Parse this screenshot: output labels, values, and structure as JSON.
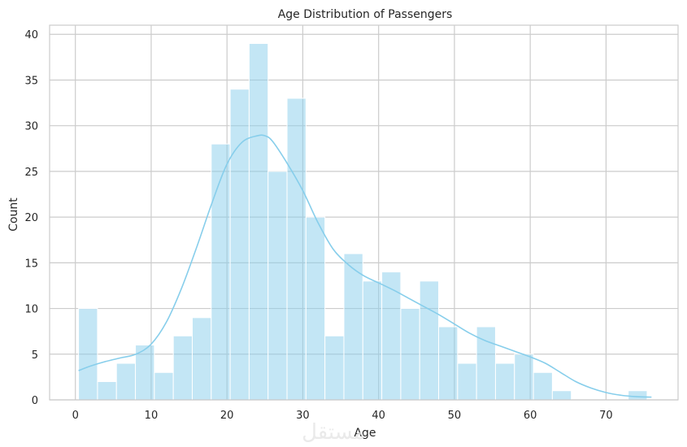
{
  "chart_data": {
    "type": "bar",
    "title": "Age Distribution of Passengers",
    "xlabel": "Age",
    "ylabel": "Count",
    "xlim": [
      -3.4,
      79.5
    ],
    "ylim": [
      0,
      41
    ],
    "xticks": [
      0,
      10,
      20,
      30,
      40,
      50,
      60,
      70
    ],
    "yticks": [
      0,
      5,
      10,
      15,
      20,
      25,
      30,
      35,
      40
    ],
    "grid": true,
    "bin_start": 0.42,
    "bin_width": 2.5,
    "values": [
      10,
      2,
      4,
      6,
      3,
      7,
      9,
      28,
      34,
      39,
      25,
      33,
      20,
      7,
      16,
      13,
      14,
      10,
      13,
      8,
      4,
      8,
      4,
      5,
      3,
      1,
      0,
      0,
      0,
      1
    ],
    "kde": {
      "x": [
        0.42,
        2,
        4,
        6,
        8,
        10,
        12,
        14,
        16,
        18,
        20,
        22,
        24,
        25,
        26,
        28,
        30,
        32,
        34,
        36,
        38,
        40,
        42,
        44,
        46,
        48,
        50,
        52,
        54,
        56,
        58,
        60,
        62,
        64,
        66,
        68,
        70,
        72,
        74,
        76
      ],
      "y": [
        3.2,
        3.7,
        4.2,
        4.6,
        5.0,
        6.1,
        8.5,
        12.2,
        16.7,
        21.5,
        25.8,
        28.2,
        28.9,
        28.9,
        28.3,
        25.8,
        22.9,
        19.4,
        16.5,
        14.8,
        13.6,
        12.8,
        12.0,
        11.1,
        10.2,
        9.3,
        8.3,
        7.3,
        6.5,
        5.9,
        5.3,
        4.7,
        4.0,
        3.0,
        2.0,
        1.3,
        0.8,
        0.5,
        0.35,
        0.3
      ]
    },
    "colors": {
      "bar": "#87ceeb",
      "bar_opacity": 0.5,
      "line": "#87ceeb"
    }
  },
  "watermark": "مستقل"
}
